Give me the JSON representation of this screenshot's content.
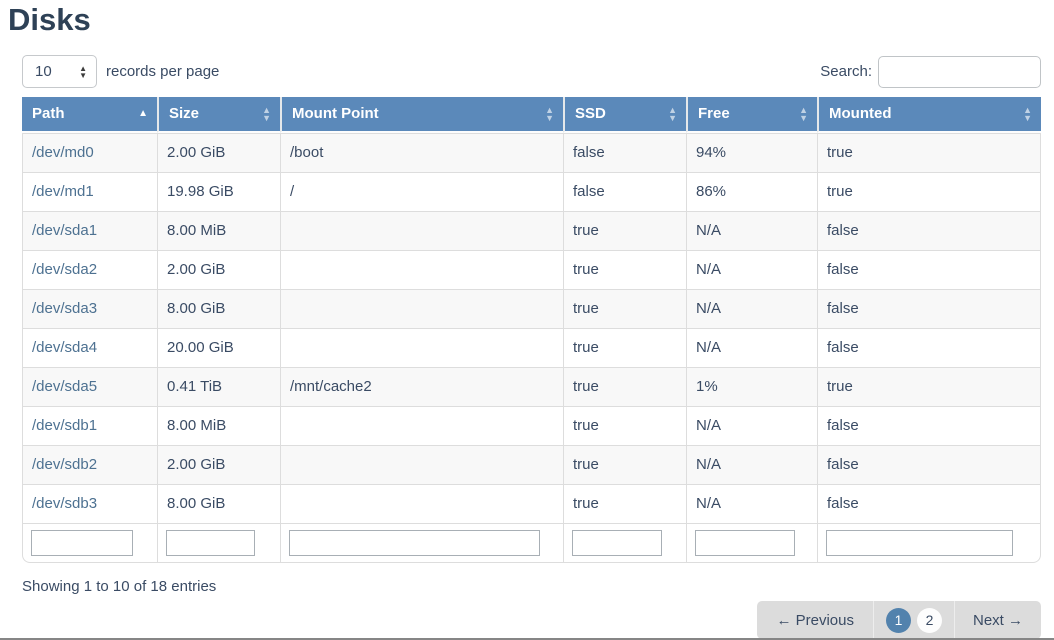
{
  "page": {
    "title": "Disks"
  },
  "controls": {
    "page_length": {
      "value": "10",
      "label": "records per page"
    },
    "search": {
      "label": "Search:",
      "value": ""
    }
  },
  "icons": {
    "sort_asc": "▲",
    "sort_up": "▲",
    "sort_down": "▼",
    "spinner_up": "▲",
    "spinner_down": "▼"
  },
  "table": {
    "columns": [
      {
        "label": "Path",
        "sort": "asc"
      },
      {
        "label": "Size",
        "sort": "both"
      },
      {
        "label": "Mount Point",
        "sort": "both"
      },
      {
        "label": "SSD",
        "sort": "both"
      },
      {
        "label": "Free",
        "sort": "both"
      },
      {
        "label": "Mounted",
        "sort": "both"
      }
    ],
    "rows": [
      [
        "/dev/md0",
        "2.00 GiB",
        "/boot",
        "false",
        "94%",
        "true"
      ],
      [
        "/dev/md1",
        "19.98 GiB",
        "/",
        "false",
        "86%",
        "true"
      ],
      [
        "/dev/sda1",
        "8.00 MiB",
        "",
        "true",
        "N/A",
        "false"
      ],
      [
        "/dev/sda2",
        "2.00 GiB",
        "",
        "true",
        "N/A",
        "false"
      ],
      [
        "/dev/sda3",
        "8.00 GiB",
        "",
        "true",
        "N/A",
        "false"
      ],
      [
        "/dev/sda4",
        "20.00 GiB",
        "",
        "true",
        "N/A",
        "false"
      ],
      [
        "/dev/sda5",
        "0.41 TiB",
        "/mnt/cache2",
        "true",
        "1%",
        "true"
      ],
      [
        "/dev/sdb1",
        "8.00 MiB",
        "",
        "true",
        "N/A",
        "false"
      ],
      [
        "/dev/sdb2",
        "2.00 GiB",
        "",
        "true",
        "N/A",
        "false"
      ],
      [
        "/dev/sdb3",
        "8.00 GiB",
        "",
        "true",
        "N/A",
        "false"
      ]
    ]
  },
  "footer": {
    "info": "Showing 1 to 10 of 18 entries",
    "pagination": {
      "previous_label": "← Previous",
      "pages": [
        "1",
        "2"
      ],
      "active_page": "1",
      "next_label": "Next →"
    }
  },
  "colors": {
    "header_bg": "#5b89ba",
    "link": "#4d7191",
    "title": "#2e4156",
    "active_page_bg": "#5282ad",
    "stripe_row_bg": "#f8f8f8",
    "pagination_bg": "#dcdcdc"
  }
}
